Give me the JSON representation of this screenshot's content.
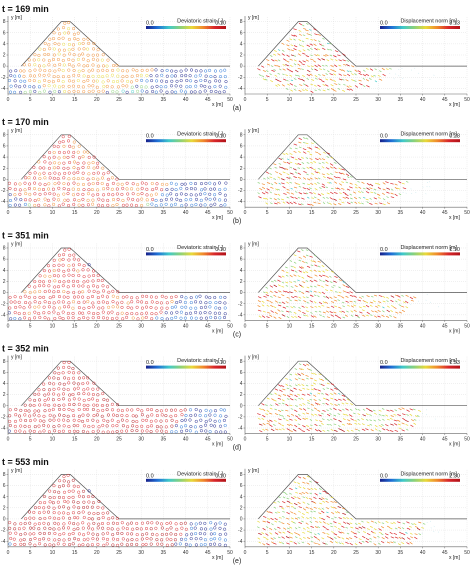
{
  "colors": {
    "ramp": [
      "#17208a",
      "#1f6fd6",
      "#3fc9c9",
      "#8bd17a",
      "#e8d93a",
      "#f08a2c",
      "#d8262b",
      "#b01218"
    ],
    "frame": "#666666",
    "grid": "#cfcfcf",
    "slope": "#555555",
    "particle_cool": "#2d3a9c",
    "particle_hot": "#d8262b"
  },
  "axes": {
    "y_label": "y [m]",
    "x_label": "x [m]",
    "x_ticks": [
      "0",
      "5",
      "10",
      "15",
      "20",
      "25",
      "30",
      "35",
      "40",
      "45",
      "50"
    ],
    "y_ticks": [
      "8",
      "6",
      "4",
      "2",
      "0",
      "-2",
      "-4"
    ]
  },
  "colorbars": {
    "strain_title": "Deviatoric strain [-]",
    "strain_min": "0.0",
    "strain_max": "0.10",
    "disp_title": "Displacement norm [m]",
    "disp_min": "0.0"
  },
  "rows": [
    {
      "time": "t = 169 min",
      "caption": "(a)",
      "disp_max": "3.13",
      "slip_depth": 0.15,
      "slip_reach": 0.55
    },
    {
      "time": "t = 170 min",
      "caption": "(b)",
      "disp_max": "0.28",
      "slip_depth": 0.45,
      "slip_reach": 0.75
    },
    {
      "time": "t = 351 min",
      "caption": "(c)",
      "disp_max": "1.10",
      "slip_depth": 0.55,
      "slip_reach": 0.85
    },
    {
      "time": "t = 352 min",
      "caption": "(d)",
      "disp_max": "1.53",
      "slip_depth": 0.7,
      "slip_reach": 0.95
    },
    {
      "time": "t = 553 min",
      "caption": "(e)",
      "disp_max": "2.30",
      "slip_depth": 0.75,
      "slip_reach": 1.0
    }
  ]
}
